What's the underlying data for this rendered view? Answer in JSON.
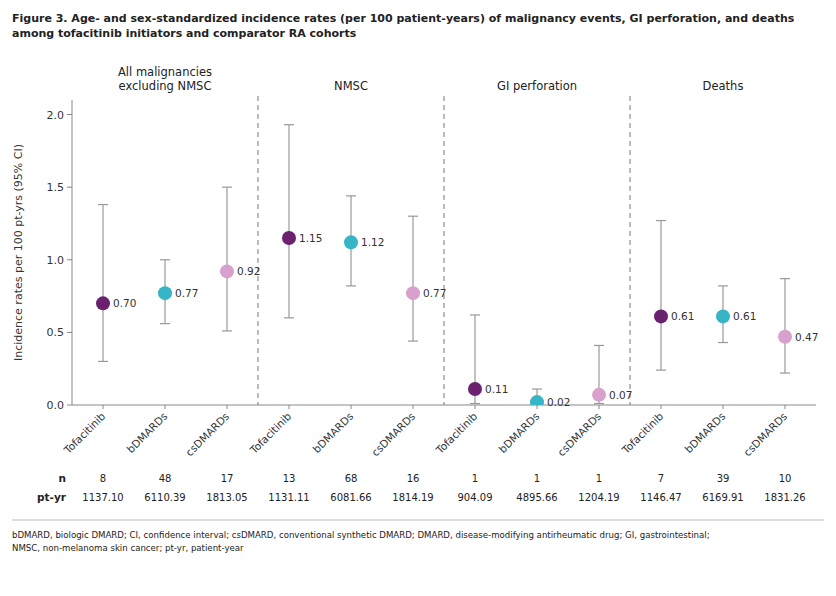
{
  "chart_data": {
    "type": "scatter",
    "title": "Figure 3. Age- and sex-standardized incidence rates (per 100 patient-years) of malignancy events, GI perforation, and deaths\namong tofacitinib initiators and comparator RA cohorts",
    "y_label": "Incidence rates per 100 pt-yrs (95% CI)",
    "footnote": "bDMARD, biologic DMARD; CI, confidence interval; csDMARD, conventional synthetic DMARD; DMARD, disease-modifying antirheumatic drug; GI, gastrointestinal;\nNMSC, non-melanoma skin cancer; pt-yr, patient-year",
    "section_labels": [
      "All malignancies\nexcluding NMSC",
      "NMSC",
      "GI perforation",
      "Deaths"
    ],
    "categories": [
      "Tofacitinib",
      "bDMARDs",
      "csDMARDs",
      "Tofacitinib",
      "bDMARDs",
      "csDMARDs",
      "Tofacitinib",
      "bDMARDs",
      "csDMARDs",
      "Tofacitinib",
      "bDMARDs",
      "csDMARDs"
    ],
    "values": [
      0.7,
      0.77,
      0.92,
      1.15,
      1.12,
      0.77,
      0.11,
      0.02,
      0.07,
      0.61,
      0.61,
      0.47
    ],
    "value_labels": [
      "0.70",
      "0.77",
      "0.92",
      "1.15",
      "1.12",
      "0.77",
      "0.11",
      "0.02",
      "0.07",
      "0.61",
      "0.61",
      "0.47"
    ],
    "ci_lower": [
      0.3,
      0.56,
      0.51,
      0.6,
      0.82,
      0.44,
      0.01,
      0.0,
      0.01,
      0.24,
      0.43,
      0.22
    ],
    "ci_upper": [
      1.38,
      1.0,
      1.5,
      1.93,
      1.44,
      1.3,
      0.62,
      0.11,
      0.41,
      1.27,
      0.82,
      0.87
    ],
    "colors": [
      "#6b2070",
      "#35b5c5",
      "#d8a0cc",
      "#6b2070",
      "#35b5c5",
      "#d8a0cc",
      "#6b2070",
      "#35b5c5",
      "#d8a0cc",
      "#6b2070",
      "#35b5c5",
      "#d8a0cc"
    ],
    "table": [
      {
        "label": "n",
        "values": [
          "8",
          "48",
          "17",
          "13",
          "68",
          "16",
          "1",
          "1",
          "1",
          "7",
          "39",
          "10"
        ]
      },
      {
        "label": "pt-yr",
        "values": [
          "1137.10",
          "6110.39",
          "1813.05",
          "1131.11",
          "6081.66",
          "1814.19",
          "904.09",
          "4895.66",
          "1204.19",
          "1146.47",
          "6169.91",
          "1831.26"
        ]
      }
    ],
    "data_labels": true,
    "grid": false,
    "ylim": [
      0.0,
      2.1
    ],
    "yticks": [
      {
        "value": 0.0,
        "label": "0.0"
      },
      0.5,
      {
        "value": 1.0,
        "label": "1.0"
      },
      1.5,
      {
        "value": 2.0,
        "label": "2.0"
      }
    ]
  }
}
